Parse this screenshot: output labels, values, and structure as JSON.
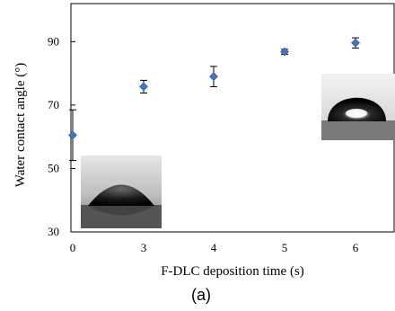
{
  "chart_data": {
    "type": "scatter",
    "xlabel": "F-DLC deposition time (s)",
    "ylabel": "Water contact angle (°)",
    "panel_label": "(a)",
    "x_ticks": [
      "0",
      "3",
      "4",
      "5",
      "6"
    ],
    "y_ticks": [
      "30",
      "50",
      "70",
      "90"
    ],
    "ylim": [
      30,
      102
    ],
    "grid": false,
    "legend": "none",
    "marker_color": "#4a75b5",
    "series": [
      {
        "points": [
          {
            "x": "0",
            "y": 60.5,
            "err": 8.0
          },
          {
            "x": "3",
            "y": 75.8,
            "err": 2.0
          },
          {
            "x": "4",
            "y": 79.0,
            "err": 3.2
          },
          {
            "x": "5",
            "y": 86.8,
            "err": 0.8
          },
          {
            "x": "6",
            "y": 89.6,
            "err": 1.6
          }
        ]
      }
    ],
    "insets": [
      {
        "name": "droplet-low-angle-photo",
        "near": "x=0"
      },
      {
        "name": "droplet-high-angle-photo",
        "near": "x=6"
      }
    ]
  }
}
